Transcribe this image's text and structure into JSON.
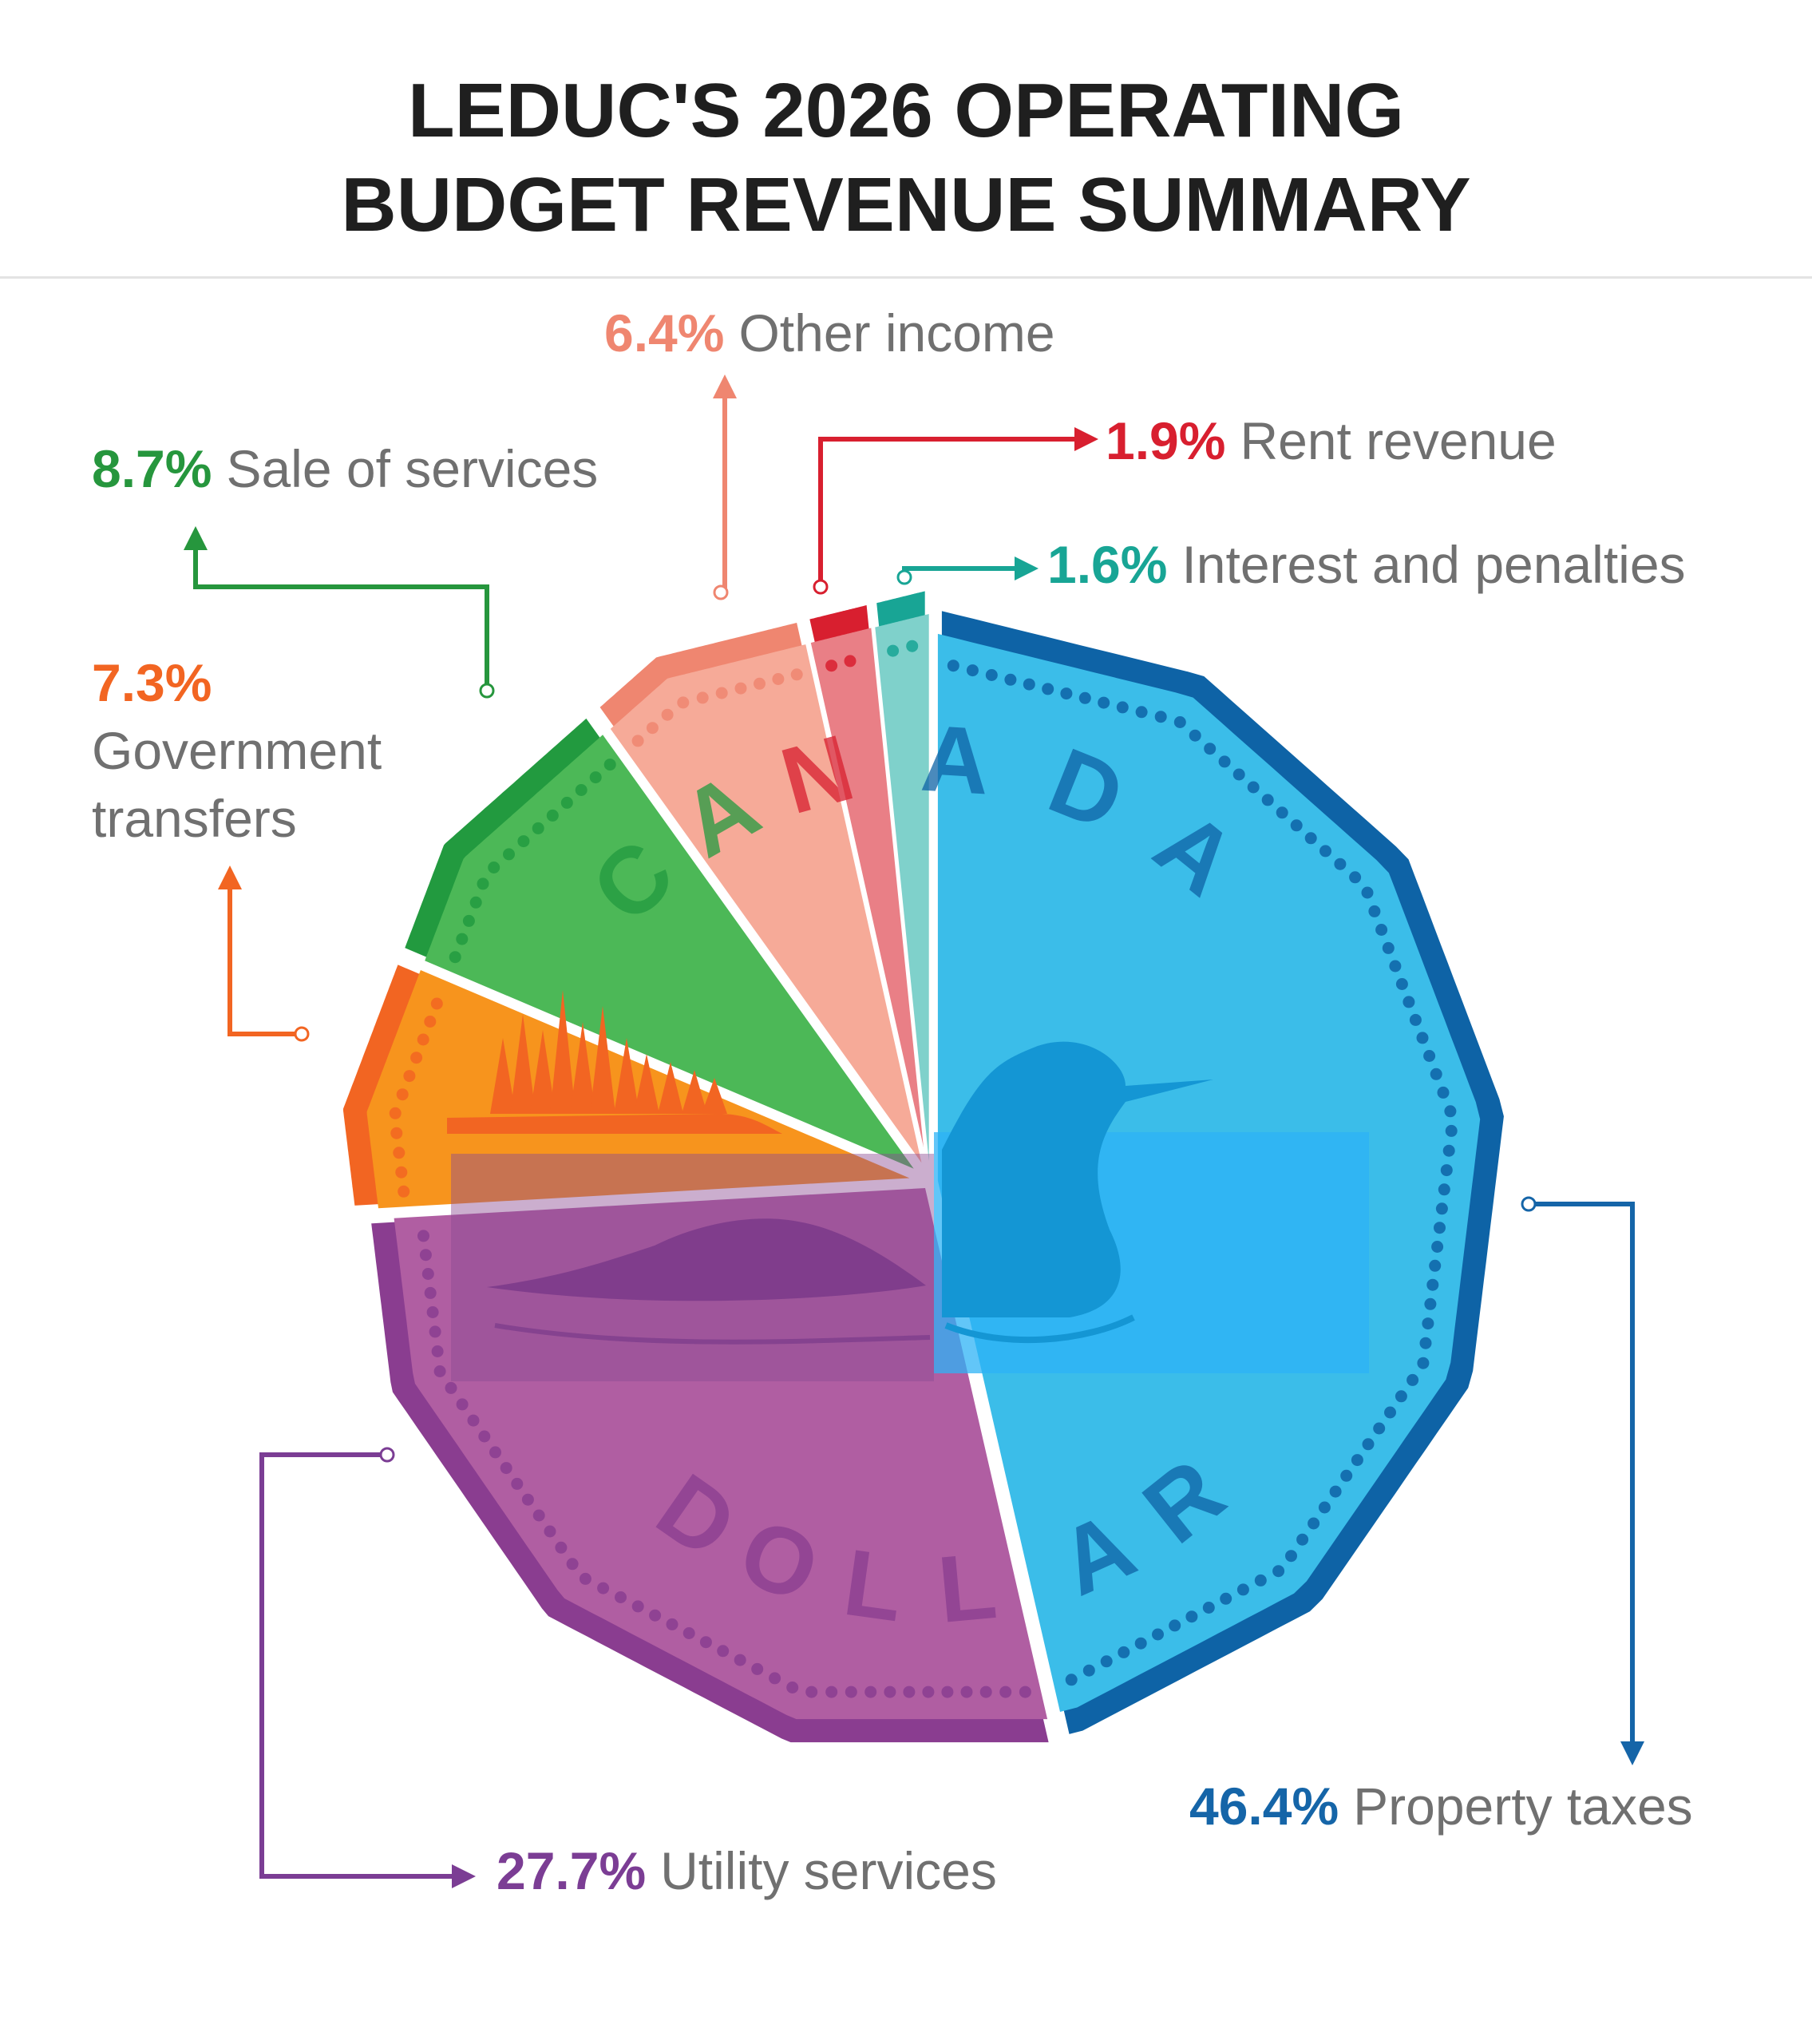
{
  "chart_data": {
    "type": "pie",
    "title_lines": [
      "LEDUC'S 2026 OPERATING",
      "BUDGET REVENUE SUMMARY"
    ],
    "slices": [
      {
        "pct_label": "46.4%",
        "name": "Property taxes",
        "value": 46.4,
        "color": "#3bbde9",
        "edge": "#0e63a6",
        "label_color": "#1565a8"
      },
      {
        "pct_label": "27.7%",
        "name": "Utility services",
        "value": 27.7,
        "color": "#b05ea2",
        "edge": "#8a3d90",
        "label_color": "#7b3d94"
      },
      {
        "pct_label": "7.3%",
        "name_lines": [
          "Government",
          "transfers"
        ],
        "value": 7.3,
        "color": "#f7941d",
        "edge": "#f26522",
        "label_color": "#f26522"
      },
      {
        "pct_label": "8.7%",
        "name": "Sale of services",
        "value": 8.7,
        "color": "#4cb857",
        "edge": "#229a3f",
        "label_color": "#26963d"
      },
      {
        "pct_label": "6.4%",
        "name": "Other income",
        "value": 6.4,
        "color": "#f6aa98",
        "edge": "#ef8670",
        "label_color": "#ef8670"
      },
      {
        "pct_label": "1.9%",
        "name": "Rent revenue",
        "value": 1.9,
        "color": "#e97f86",
        "edge": "#d81f2f",
        "label_color": "#d81f2f"
      },
      {
        "pct_label": "1.6%",
        "name": "Interest and penalties",
        "value": 1.6,
        "color": "#7fd1cb",
        "edge": "#18a595",
        "label_color": "#18a595"
      }
    ],
    "coin_text": {
      "top": "CANADA",
      "bottom": "DOLLAR"
    }
  }
}
